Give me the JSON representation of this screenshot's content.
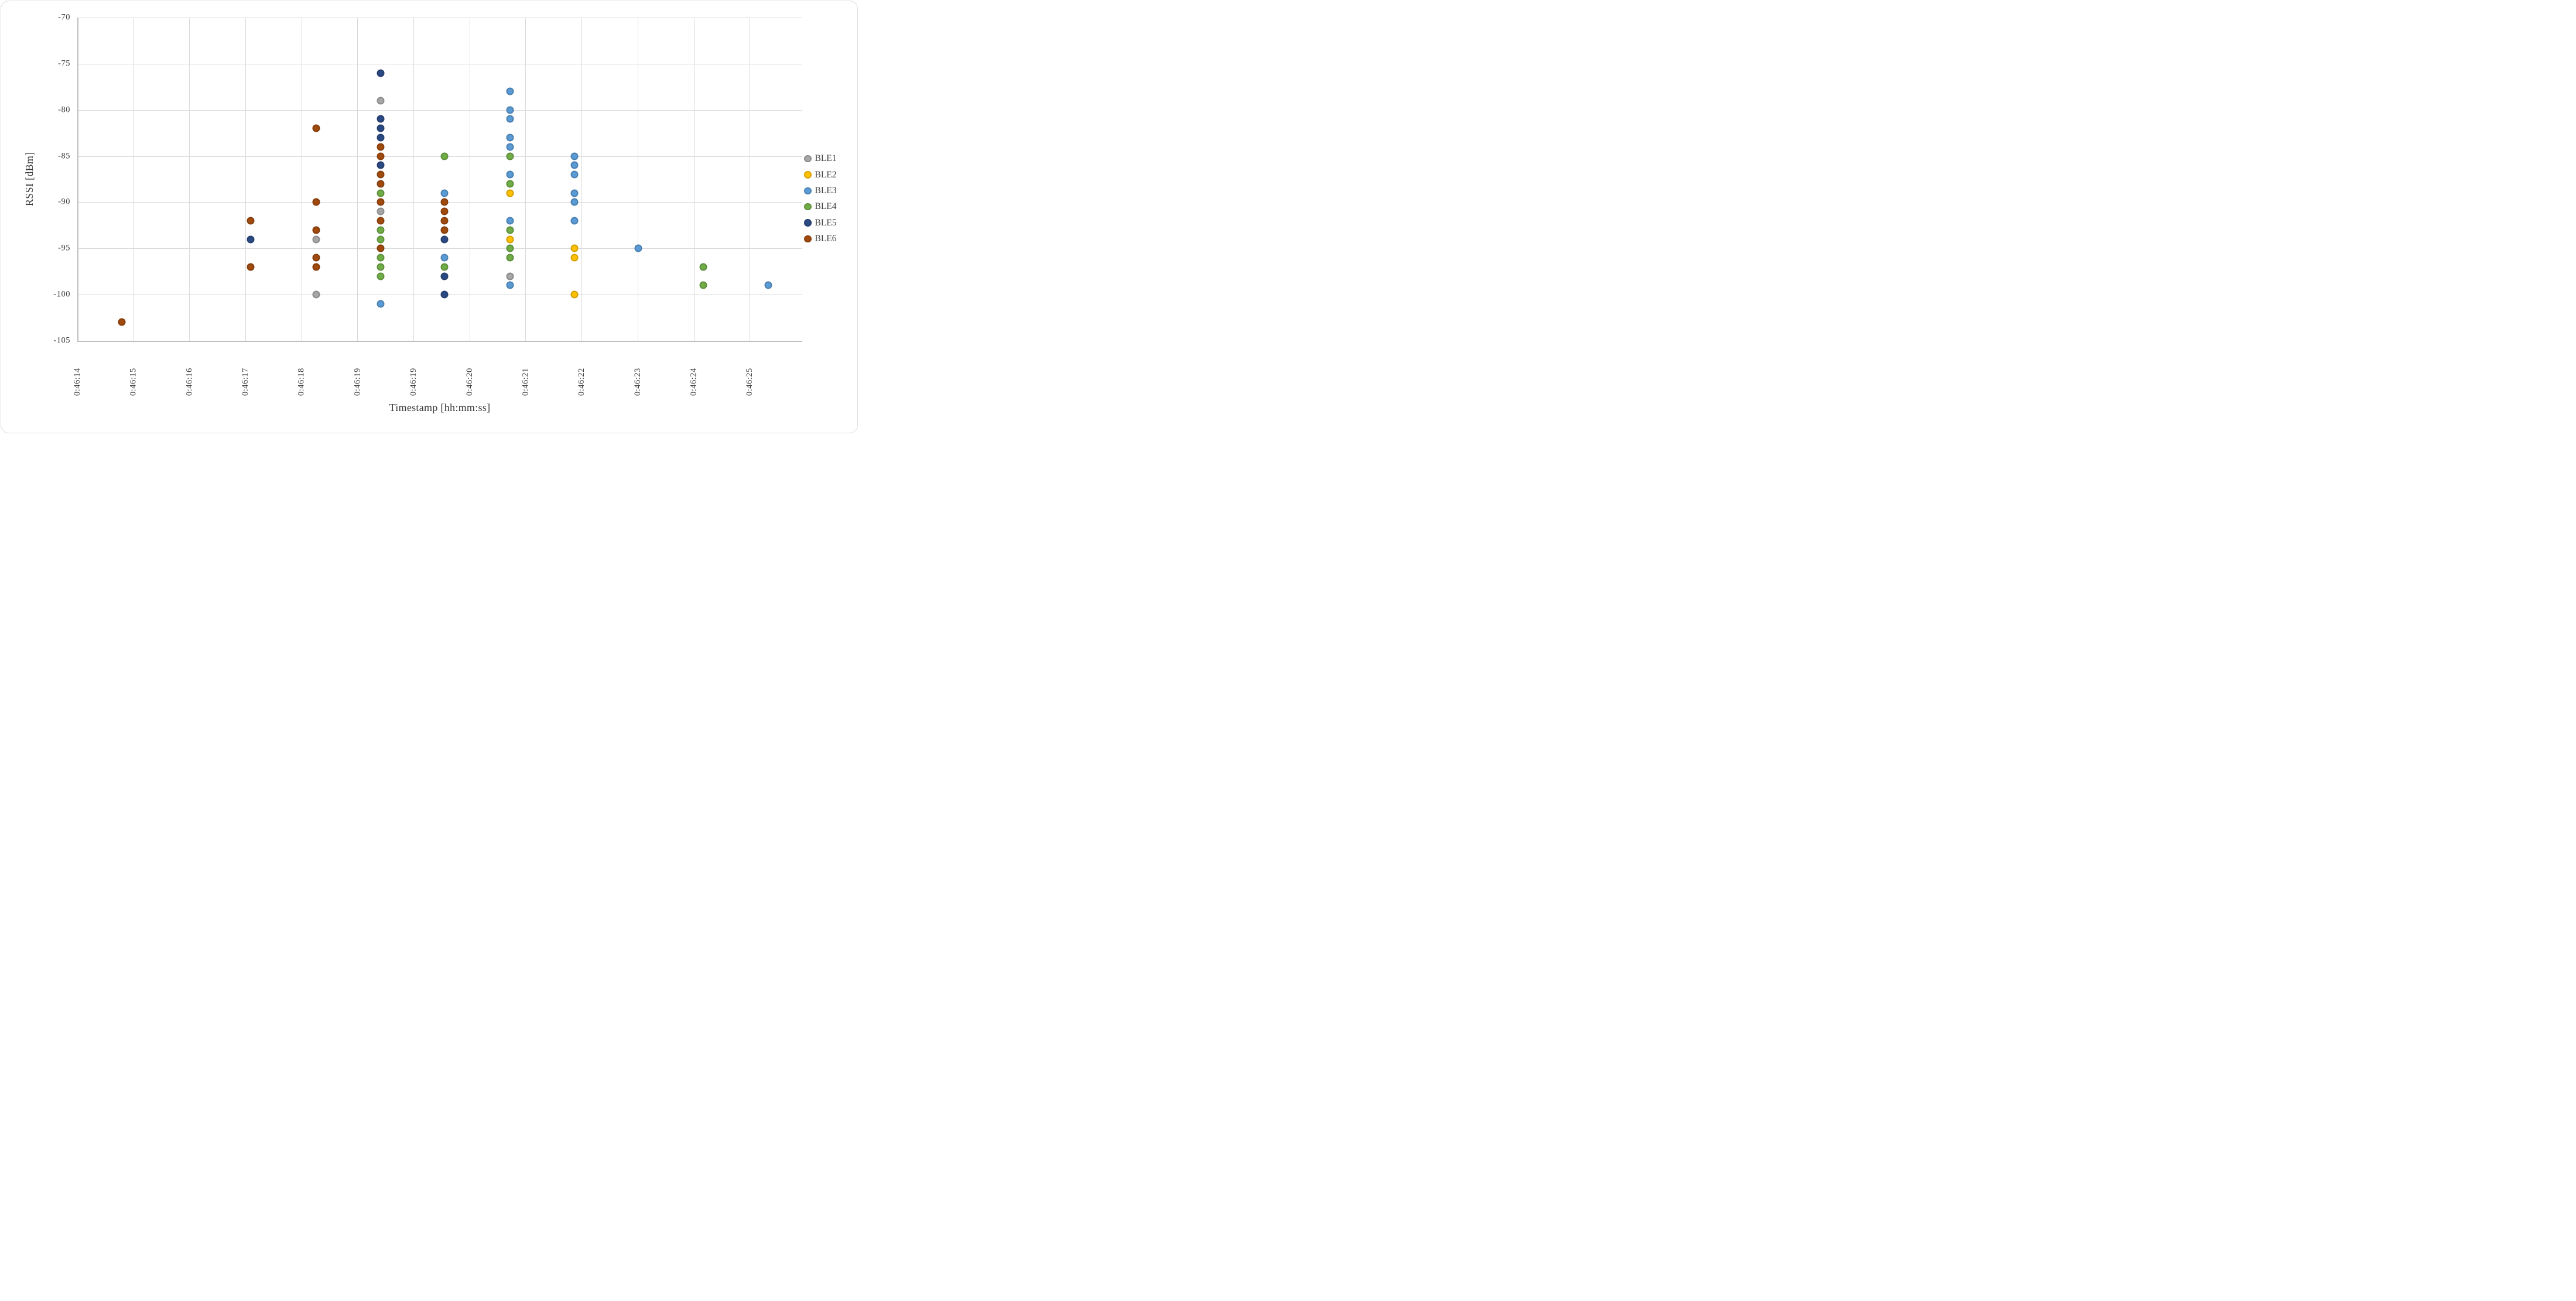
{
  "chart_data": {
    "type": "scatter",
    "title": "",
    "xlabel": "Timestamp [hh:mm:ss]",
    "ylabel": "RSSI [dBm]",
    "x_axis_note": "times are seconds after 0:46:00",
    "x_tick_labels": [
      "0:46:14",
      "0:46:15",
      "0:46:16",
      "0:46:17",
      "0:46:18",
      "0:46:19",
      "0:46:19",
      "0:46:20",
      "0:46:21",
      "0:46:22",
      "0:46:23",
      "0:46:24",
      "0:46:25"
    ],
    "x_tick_seconds": [
      14,
      14.9167,
      15.8333,
      16.75,
      17.6667,
      18.5833,
      19.5,
      20.4167,
      21.3333,
      22.25,
      23.1667,
      24.0833,
      25
    ],
    "x_range_seconds": [
      14,
      25.86
    ],
    "ylim": [
      -105,
      -70
    ],
    "y_ticks": [
      -70,
      -75,
      -80,
      -85,
      -90,
      -95,
      -100,
      -105
    ],
    "grid": true,
    "legend_position": "right",
    "marker_size_px": 13,
    "series": [
      {
        "name": "BLE1",
        "color": "#a6a6a6",
        "points": [
          [
            17.91,
            -94
          ],
          [
            17.91,
            -100
          ],
          [
            18.96,
            -79
          ],
          [
            18.96,
            -91
          ],
          [
            21.08,
            -98
          ]
        ]
      },
      {
        "name": "BLE2",
        "color": "#ffc000",
        "points": [
          [
            21.08,
            -89
          ],
          [
            21.08,
            -94
          ],
          [
            22.13,
            -95
          ],
          [
            22.13,
            -96
          ],
          [
            22.13,
            -100
          ]
        ]
      },
      {
        "name": "BLE3",
        "color": "#5b9bd5",
        "points": [
          [
            18.96,
            -101
          ],
          [
            20.01,
            -89
          ],
          [
            20.01,
            -96
          ],
          [
            21.08,
            -78
          ],
          [
            21.08,
            -80
          ],
          [
            21.08,
            -81
          ],
          [
            21.08,
            -83
          ],
          [
            21.08,
            -84
          ],
          [
            21.08,
            -87
          ],
          [
            21.08,
            -92
          ],
          [
            21.08,
            -99
          ],
          [
            22.13,
            -85
          ],
          [
            22.13,
            -86
          ],
          [
            22.13,
            -87
          ],
          [
            22.13,
            -89
          ],
          [
            22.13,
            -90
          ],
          [
            22.13,
            -92
          ],
          [
            23.18,
            -95
          ],
          [
            25.3,
            -99
          ]
        ]
      },
      {
        "name": "BLE4",
        "color": "#70ad47",
        "points": [
          [
            18.96,
            -89
          ],
          [
            18.96,
            -93
          ],
          [
            18.96,
            -94
          ],
          [
            18.96,
            -96
          ],
          [
            18.96,
            -97
          ],
          [
            18.96,
            -98
          ],
          [
            20.01,
            -85
          ],
          [
            20.01,
            -97
          ],
          [
            21.08,
            -85
          ],
          [
            21.08,
            -88
          ],
          [
            21.08,
            -93
          ],
          [
            21.08,
            -95
          ],
          [
            21.08,
            -96
          ],
          [
            24.24,
            -97
          ],
          [
            24.24,
            -99
          ]
        ]
      },
      {
        "name": "BLE5",
        "color": "#2b4a84",
        "points": [
          [
            16.84,
            -94
          ],
          [
            18.96,
            -76
          ],
          [
            18.96,
            -81
          ],
          [
            18.96,
            -82
          ],
          [
            18.96,
            -83
          ],
          [
            18.96,
            -86
          ],
          [
            20.01,
            -94
          ],
          [
            20.01,
            -98
          ],
          [
            20.01,
            -100
          ]
        ]
      },
      {
        "name": "BLE6",
        "color": "#a14a0e",
        "points": [
          [
            14.73,
            -103
          ],
          [
            16.84,
            -92
          ],
          [
            16.84,
            -97
          ],
          [
            17.91,
            -82
          ],
          [
            17.91,
            -90
          ],
          [
            17.91,
            -93
          ],
          [
            17.91,
            -96
          ],
          [
            17.91,
            -97
          ],
          [
            18.96,
            -84
          ],
          [
            18.96,
            -85
          ],
          [
            18.96,
            -87
          ],
          [
            18.96,
            -88
          ],
          [
            18.96,
            -90
          ],
          [
            18.96,
            -92
          ],
          [
            18.96,
            -95
          ],
          [
            20.01,
            -90
          ],
          [
            20.01,
            -91
          ],
          [
            20.01,
            -92
          ],
          [
            20.01,
            -93
          ]
        ]
      }
    ]
  }
}
